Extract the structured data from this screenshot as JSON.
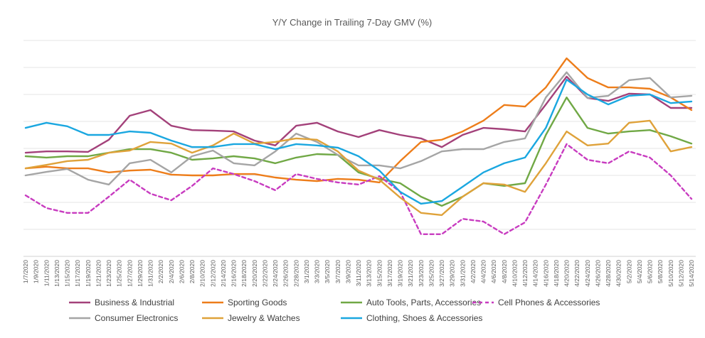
{
  "chart_data": {
    "type": "line",
    "title": "Y/Y Change in Trailing 7-Day GMV (%)",
    "xlabel": "",
    "ylabel": "",
    "ylim": [
      -40,
      40
    ],
    "y_gridlines": [
      -40,
      -30,
      -20,
      -10,
      0,
      10,
      20,
      30,
      40
    ],
    "y_units_note": "no y tick labels shown; values are relative estimates",
    "grid": true,
    "legend_position": "bottom",
    "x_ticks": [
      "1/7/2020",
      "1/9/2020",
      "1/11/2020",
      "1/13/2020",
      "1/15/2020",
      "1/17/2020",
      "1/19/2020",
      "1/21/2020",
      "1/23/2020",
      "1/25/2020",
      "1/27/2020",
      "1/29/2020",
      "1/31/2020",
      "2/2/2020",
      "2/4/2020",
      "2/6/2020",
      "2/8/2020",
      "2/10/2020",
      "2/12/2020",
      "2/14/2020",
      "2/16/2020",
      "2/18/2020",
      "2/20/2020",
      "2/22/2020",
      "2/24/2020",
      "2/26/2020",
      "2/28/2020",
      "3/1/2020",
      "3/3/2020",
      "3/5/2020",
      "3/7/2020",
      "3/9/2020",
      "3/11/2020",
      "3/13/2020",
      "3/15/2020",
      "3/17/2020",
      "3/19/2020",
      "3/21/2020",
      "3/23/2020",
      "3/25/2020",
      "3/27/2020",
      "3/29/2020",
      "3/31/2020",
      "4/2/2020",
      "4/4/2020",
      "4/6/2020",
      "4/8/2020",
      "4/10/2020",
      "4/12/2020",
      "4/14/2020",
      "4/16/2020",
      "4/18/2020",
      "4/20/2020",
      "4/22/2020",
      "4/24/2020",
      "4/26/2020",
      "4/28/2020",
      "4/30/2020",
      "5/2/2020",
      "5/4/2020",
      "5/6/2020",
      "5/8/2020",
      "5/10/2020",
      "5/12/2020",
      "5/14/2020"
    ],
    "x": [
      "1/7",
      "1/11",
      "1/15",
      "1/19",
      "1/23",
      "1/27",
      "1/31",
      "2/4",
      "2/8",
      "2/12",
      "2/16",
      "2/20",
      "2/24",
      "2/28",
      "3/3",
      "3/7",
      "3/11",
      "3/15",
      "3/19",
      "3/23",
      "3/27",
      "3/31",
      "4/4",
      "4/8",
      "4/12",
      "4/16",
      "4/20",
      "4/24",
      "4/28",
      "5/2",
      "5/6",
      "5/10",
      "5/14"
    ],
    "series": [
      {
        "name": "Business & Industrial",
        "color": "#a3417a",
        "dashed": false,
        "values": [
          -1.6,
          -1.1,
          -1.1,
          -1.3,
          3.2,
          12.1,
          14.2,
          8.4,
          6.8,
          6.6,
          6.3,
          2.9,
          1.1,
          8.4,
          9.5,
          6.3,
          4.2,
          6.8,
          5.0,
          3.7,
          0.5,
          5.0,
          7.6,
          7.1,
          6.3,
          16.3,
          26.6,
          18.7,
          17.6,
          20.3,
          20.0,
          15.0,
          15.0
        ]
      },
      {
        "name": "Sporting Goods",
        "color": "#ed7d1a",
        "dashed": false,
        "values": [
          -7.4,
          -6.8,
          -7.4,
          -7.4,
          -8.9,
          -8.2,
          -7.9,
          -9.7,
          -10.0,
          -10.0,
          -9.5,
          -9.5,
          -10.8,
          -11.6,
          -12.1,
          -11.3,
          -11.6,
          -12.6,
          -4.7,
          2.4,
          3.2,
          6.3,
          10.3,
          16.1,
          15.5,
          22.6,
          33.4,
          26.1,
          22.6,
          22.6,
          22.1,
          18.9,
          14.2
        ]
      },
      {
        "name": "Auto Tools, Parts, Accessories",
        "color": "#70a845",
        "dashed": false,
        "values": [
          -2.9,
          -3.4,
          -2.9,
          -2.9,
          -1.6,
          -0.3,
          -0.3,
          -1.6,
          -4.2,
          -3.7,
          -2.9,
          -3.7,
          -5.5,
          -3.4,
          -2.1,
          -2.4,
          -8.9,
          -11.3,
          -12.9,
          -17.9,
          -21.3,
          -17.9,
          -12.9,
          -13.9,
          -12.9,
          5.0,
          18.9,
          7.6,
          5.5,
          6.3,
          6.8,
          4.5,
          1.8
        ]
      },
      {
        "name": "Cell Phones & Accessories",
        "color": "#c83cc0",
        "dashed": true,
        "values": [
          -17.4,
          -22.1,
          -23.9,
          -23.9,
          -17.9,
          -11.6,
          -16.8,
          -19.2,
          -13.9,
          -7.4,
          -9.5,
          -12.1,
          -15.5,
          -9.5,
          -11.3,
          -12.6,
          -13.4,
          -10.3,
          -16.1,
          -31.8,
          -31.8,
          -26.1,
          -27.1,
          -31.8,
          -27.4,
          -13.4,
          1.6,
          -4.2,
          -5.5,
          -1.1,
          -3.4,
          -10.0,
          -18.7
        ]
      },
      {
        "name": "Consumer Electronics",
        "color": "#a5a5a5",
        "dashed": false,
        "values": [
          -10.0,
          -8.7,
          -7.6,
          -11.6,
          -13.4,
          -5.5,
          -4.2,
          -8.9,
          -2.9,
          -0.8,
          -5.5,
          -6.3,
          -1.1,
          5.5,
          2.4,
          -2.4,
          -6.3,
          -6.3,
          -7.4,
          -4.7,
          -1.1,
          -0.3,
          -0.3,
          2.4,
          3.7,
          18.9,
          28.2,
          18.7,
          19.5,
          25.3,
          26.1,
          18.9,
          19.5
        ]
      },
      {
        "name": "Jewelry & Watches",
        "color": "#dfa23a",
        "dashed": false,
        "values": [
          -7.4,
          -6.1,
          -4.7,
          -4.2,
          -1.6,
          -0.8,
          2.4,
          1.8,
          -1.6,
          1.1,
          5.5,
          1.8,
          2.4,
          3.7,
          3.2,
          -1.1,
          -8.2,
          -11.6,
          -18.2,
          -23.9,
          -24.7,
          -17.9,
          -12.9,
          -13.4,
          -16.1,
          -5.5,
          6.3,
          1.1,
          1.8,
          9.5,
          10.3,
          -1.1,
          0.5
        ]
      },
      {
        "name": "Clothing, Shoes & Accessories",
        "color": "#1aa7e0",
        "dashed": false,
        "values": [
          7.6,
          9.5,
          8.2,
          5.0,
          5.0,
          6.3,
          5.8,
          2.9,
          0.5,
          0.5,
          1.6,
          1.6,
          -0.3,
          1.6,
          1.1,
          0.3,
          -2.9,
          -8.2,
          -16.1,
          -20.5,
          -19.5,
          -14.2,
          -8.9,
          -5.5,
          -3.4,
          7.6,
          25.5,
          20.0,
          16.3,
          19.5,
          20.0,
          16.8,
          17.4
        ]
      }
    ]
  }
}
